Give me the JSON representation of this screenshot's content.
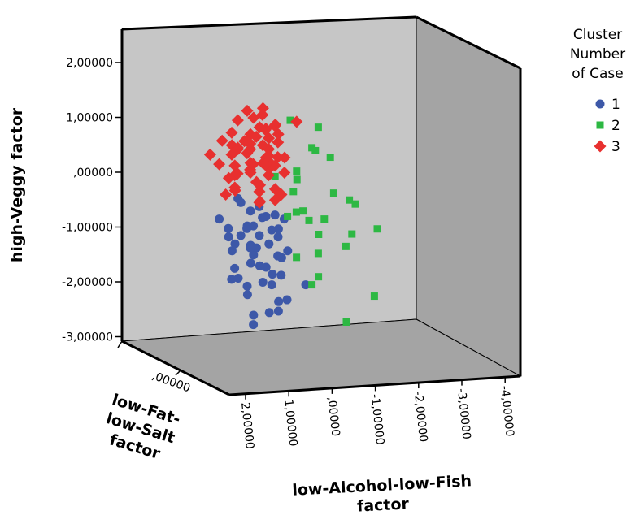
{
  "chart_data": {
    "type": "scatter",
    "projection": "3d",
    "xlabel": "low-Alcohol-low-Fish factor",
    "xlabel_lines": [
      "low-Alcohol-low-Fish",
      "factor"
    ],
    "ylabel": "high-Veggy factor",
    "zlabel": "low-Fat-low-Salt factor",
    "zlabel_lines": [
      "low-Fat-",
      "low-Salt",
      "factor"
    ],
    "x_ticks": [
      "2,00000",
      "1,00000",
      ",00000",
      "-1,00000",
      "-2,00000",
      "-3,00000",
      "-4,00000"
    ],
    "y_ticks": [
      "2,00000",
      "1,00000",
      ",00000",
      "-1,00000",
      "-2,00000",
      "-3,00000"
    ],
    "z_ticks": [
      ",00000"
    ],
    "xlim": [
      2.5,
      -4.2
    ],
    "ylim": [
      -3,
      2.3
    ],
    "grid": false,
    "legend": {
      "title_lines": [
        "Cluster",
        "Number",
        "of Case"
      ],
      "placement": "top-right"
    },
    "series": [
      {
        "name": "1",
        "color": "#3d58a8",
        "marker": "circle",
        "x": [
          1.8,
          1.6,
          1.7,
          1.4,
          1.5,
          1.2,
          1.3,
          1.0,
          1.1,
          0.9,
          0.8,
          0.5,
          0.7,
          0.6,
          0.3,
          0.4,
          0.2,
          0.1,
          0.0,
          -0.1,
          -0.2,
          0.5,
          1.3,
          1.4,
          1.2,
          1.0,
          0.6,
          0.3,
          0.1,
          -0.1,
          0.2,
          -0.5,
          -1.0,
          0.9,
          0.8,
          0.6,
          1.5,
          1.1,
          1.0,
          0.8,
          0.4,
          0.2,
          0.1,
          -0.3,
          0.7,
          0.5,
          1.1,
          0.9
        ],
        "y": [
          -0.8,
          -1.1,
          -1.3,
          -1.0,
          -1.2,
          -1.5,
          -1.7,
          -0.9,
          -1.2,
          -1.4,
          -1.0,
          -1.1,
          -1.3,
          -1.6,
          -0.8,
          -1.2,
          -1.4,
          -1.0,
          -1.1,
          -1.3,
          -1.5,
          -0.7,
          -0.4,
          -1.9,
          -2.1,
          -2.0,
          -1.9,
          -2.2,
          -2.0,
          -1.8,
          -2.4,
          -2.3,
          -2.0,
          -2.5,
          -2.7,
          -2.4,
          -1.8,
          -0.5,
          -0.6,
          -0.9,
          -0.6,
          -0.9,
          -0.7,
          -0.8,
          -1.6,
          -1.7,
          -1.1,
          -1.3
        ],
        "z": [
          0.2,
          0.3,
          0.5,
          0.1,
          0.4,
          0.6,
          0.2,
          0.3,
          0.5,
          0.4,
          0.1,
          0.2,
          0.3,
          0.5,
          0.1,
          0.4,
          0.6,
          0.2,
          0.3,
          0.5,
          0.1,
          0.4,
          0.3,
          0.2,
          0.5,
          0.3,
          0.4,
          0.6,
          0.2,
          0.3,
          0.5,
          0.1,
          0.2,
          0.4,
          0.3,
          0.6,
          0.5,
          0.2,
          0.4,
          0.3,
          0.1,
          0.5,
          0.3,
          0.2,
          0.4,
          0.6,
          0.2,
          0.3
        ]
      },
      {
        "name": "2",
        "color": "#2db843",
        "marker": "square",
        "x": [
          -0.5,
          -1.3,
          -1.9,
          -1.1,
          -1.2,
          -0.6,
          -0.4,
          -0.6,
          -0.7,
          -0.8,
          -1.0,
          -1.6,
          -2.2,
          -2.5,
          -3.0,
          -2.3,
          -2.8,
          -1.3,
          -1.2,
          -1.2,
          -1.1,
          -2.6,
          0.1,
          -0.2,
          -0.7,
          -2.0,
          -1.8
        ],
        "y": [
          1.0,
          0.9,
          0.3,
          0.5,
          0.5,
          0.1,
          0.0,
          -0.3,
          -0.6,
          -0.7,
          -0.8,
          -0.8,
          -0.4,
          -0.5,
          -0.9,
          -1.3,
          -2.1,
          -1.4,
          -1.8,
          -2.0,
          -1.0,
          -1.1,
          0.0,
          -0.7,
          -1.5,
          -2.6,
          -0.3
        ],
        "z": [
          0.2,
          0.3,
          0.1,
          0.4,
          0.2,
          0.3,
          0.5,
          0.2,
          0.4,
          0.1,
          0.3,
          0.2,
          0.4,
          0.3,
          0.5,
          0.2,
          0.6,
          0.3,
          0.4,
          0.2,
          0.5,
          0.1,
          0.3,
          0.4,
          0.2,
          0.5,
          0.3
        ]
      },
      {
        "name": "3",
        "color": "#e8302f",
        "marker": "diamond",
        "x": [
          2.2,
          1.8,
          1.6,
          1.5,
          1.3,
          1.2,
          1.0,
          0.9,
          0.7,
          0.6,
          0.5,
          0.3,
          0.2,
          0.0,
          -0.1,
          1.7,
          1.4,
          1.1,
          0.8,
          0.4,
          0.1,
          -0.2,
          1.6,
          1.3,
          1.0,
          0.7,
          0.5,
          0.2,
          -0.1,
          1.5,
          1.2,
          0.9,
          0.6,
          0.3,
          0.0,
          1.8,
          1.4,
          1.1,
          0.8,
          0.5,
          0.2,
          1.0,
          0.7,
          0.4,
          0.1,
          1.3,
          0.9,
          0.6,
          0.3,
          0.8,
          0.5,
          0.2,
          -0.6,
          1.6,
          1.2,
          0.7,
          0.4,
          0.9,
          0.6,
          0.3,
          0.0
        ],
        "y": [
          0.4,
          0.2,
          0.6,
          0.4,
          0.7,
          0.5,
          0.8,
          0.6,
          0.3,
          0.7,
          0.9,
          0.5,
          0.8,
          0.4,
          0.6,
          0.0,
          0.2,
          0.3,
          0.1,
          0.4,
          0.2,
          0.3,
          -0.2,
          0.0,
          0.1,
          -0.1,
          0.2,
          0.0,
          0.1,
          0.8,
          1.0,
          1.1,
          0.9,
          1.0,
          0.9,
          -0.3,
          -0.2,
          0.0,
          -0.1,
          -0.3,
          -0.2,
          1.2,
          1.3,
          1.1,
          0.8,
          0.5,
          0.4,
          0.6,
          0.7,
          -0.4,
          -0.5,
          -0.4,
          1.0,
          0.6,
          0.7,
          0.2,
          0.3,
          0.5,
          0.4,
          0.2,
          -0.3
        ],
        "z": [
          0.3,
          0.2,
          0.4,
          0.3,
          0.5,
          0.2,
          0.4,
          0.3,
          0.5,
          0.2,
          0.4,
          0.3,
          0.1,
          0.5,
          0.2,
          0.4,
          0.3,
          0.5,
          0.2,
          0.4,
          0.3,
          0.1,
          0.5,
          0.2,
          0.4,
          0.3,
          0.5,
          0.2,
          0.4,
          0.3,
          0.2,
          0.4,
          0.3,
          0.5,
          0.2,
          0.4,
          0.3,
          0.1,
          0.5,
          0.2,
          0.4,
          0.3,
          0.5,
          0.2,
          0.4,
          0.3,
          0.2,
          0.4,
          0.3,
          0.5,
          0.2,
          0.4,
          0.3,
          0.1,
          0.5,
          0.2,
          0.4,
          0.3,
          0.5,
          0.2,
          0.4
        ]
      }
    ]
  }
}
